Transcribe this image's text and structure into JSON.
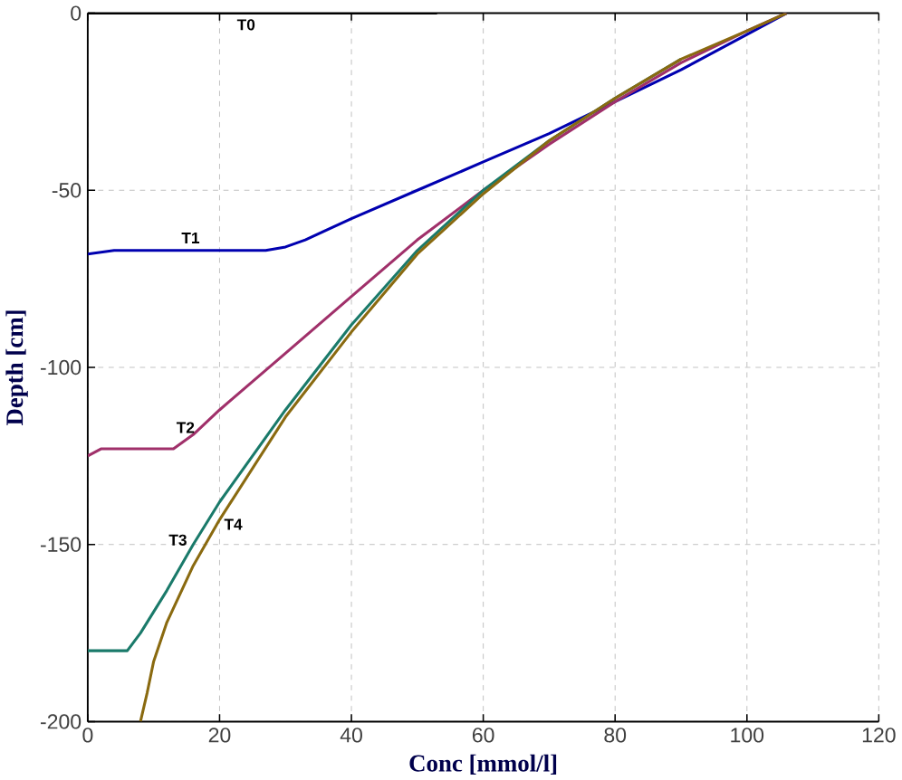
{
  "chart_data": {
    "type": "line",
    "xlabel": "Conc [mmol/l]",
    "ylabel": "Depth [cm]",
    "xlim": [
      0,
      120
    ],
    "ylim": [
      -200,
      0
    ],
    "xticks": [
      0,
      20,
      40,
      60,
      80,
      100,
      120
    ],
    "yticks": [
      -200,
      -150,
      -100,
      -50,
      0
    ],
    "grid": true,
    "marker": "none",
    "line_style": "solid",
    "series": [
      {
        "name": "T0",
        "color": "#000000",
        "x": [
          0,
          53
        ],
        "values": [
          0,
          0
        ]
      },
      {
        "name": "T1",
        "color": "#0000b0",
        "x": [
          0,
          4,
          27,
          30,
          33,
          40,
          50,
          60,
          70,
          80,
          90,
          100,
          106
        ],
        "values": [
          -68,
          -67,
          -67,
          -66,
          -64,
          -58,
          -50,
          -42,
          -34,
          -25,
          -16,
          -6,
          0
        ]
      },
      {
        "name": "T2",
        "color": "#a0306a",
        "x": [
          0,
          2,
          13,
          16,
          20,
          30,
          40,
          50,
          60,
          70,
          80,
          90,
          100,
          106
        ],
        "values": [
          -125,
          -123,
          -123,
          -119,
          -112,
          -96,
          -80,
          -64,
          -50,
          -37,
          -25,
          -14,
          -5,
          0
        ]
      },
      {
        "name": "T3",
        "color": "#1a7a6a",
        "x": [
          0,
          6,
          8,
          12,
          16,
          20,
          30,
          40,
          50,
          60,
          70,
          80,
          90
        ],
        "values": [
          -180,
          -180,
          -175,
          -163,
          -150,
          -138,
          -112,
          -88,
          -67,
          -50,
          -36,
          -24,
          -13
        ]
      },
      {
        "name": "T4",
        "color": "#8a6a10",
        "x": [
          8,
          9,
          10,
          12,
          16,
          20,
          30,
          40,
          50,
          60,
          70,
          80,
          90,
          100,
          106
        ],
        "values": [
          -200,
          -192,
          -183,
          -172,
          -156,
          -143,
          -114,
          -90,
          -68,
          -51,
          -36,
          -24,
          -13,
          -5,
          0
        ]
      }
    ]
  }
}
